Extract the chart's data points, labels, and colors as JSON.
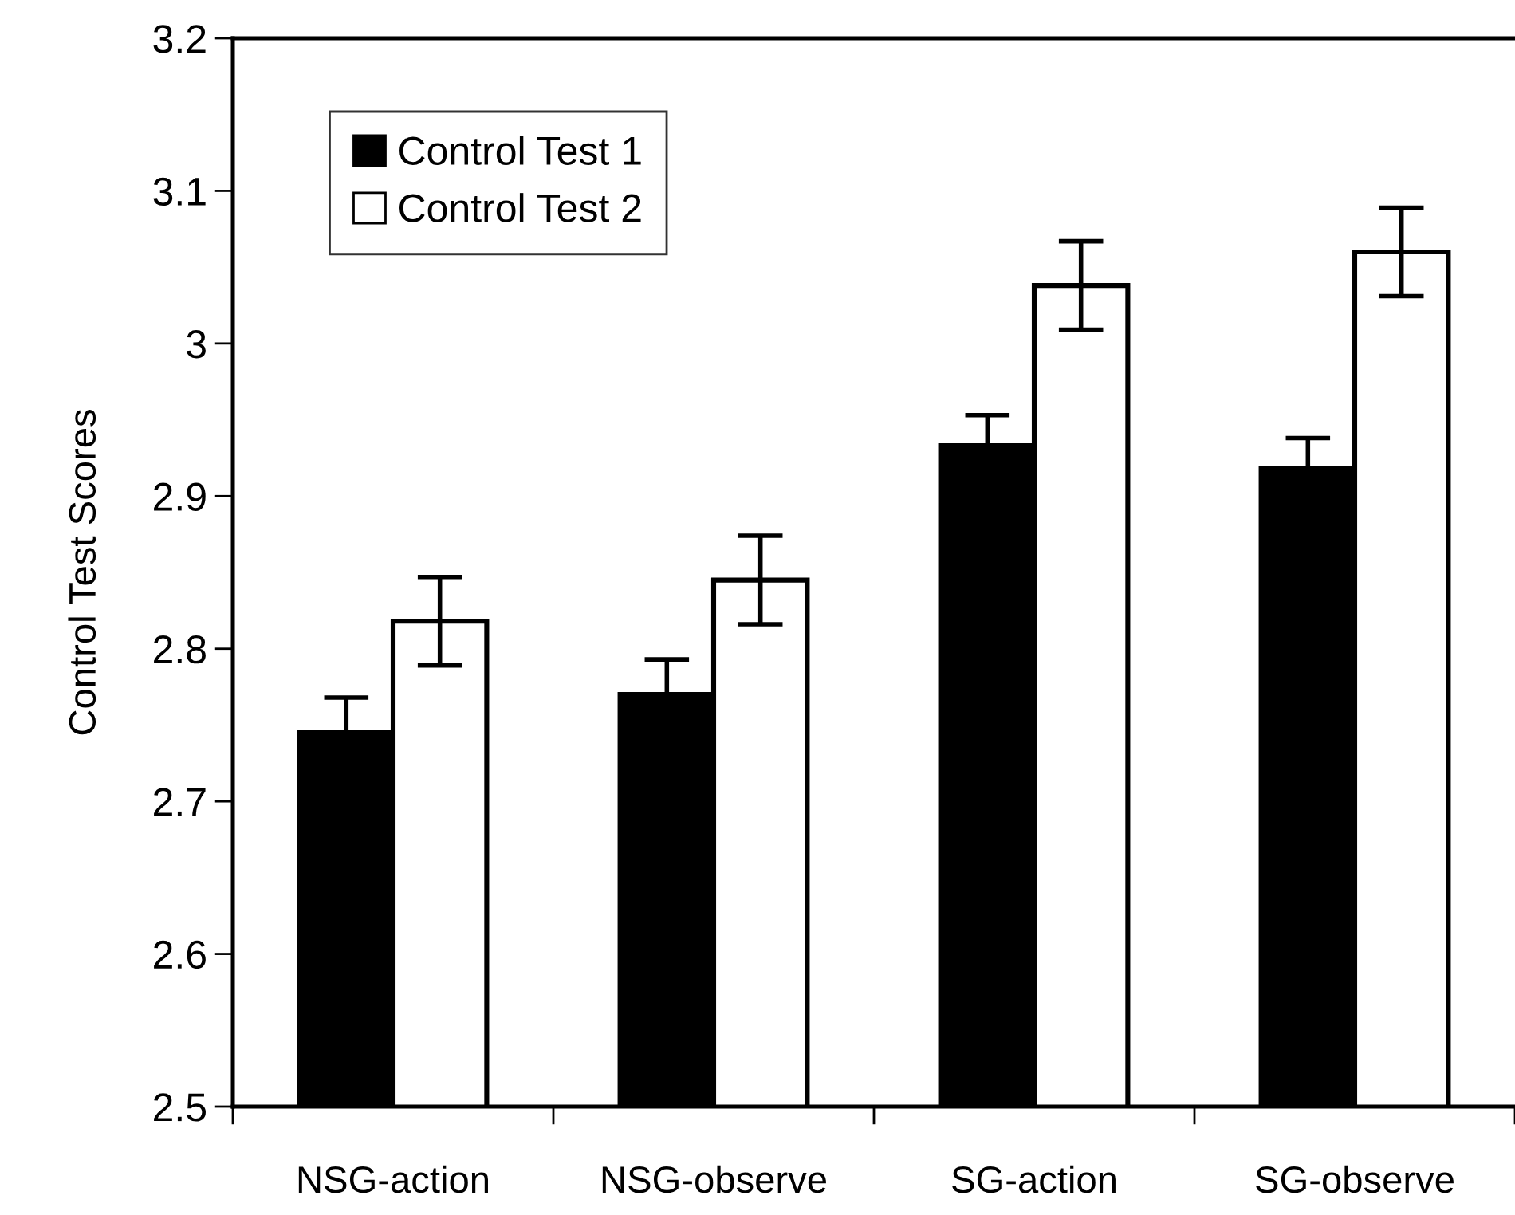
{
  "chart_data": {
    "type": "bar",
    "ylabel": "Control Test Scores",
    "categories": [
      "NSG-action",
      "NSG-observe",
      "SG-action",
      "SG-observe"
    ],
    "series": [
      {
        "name": "Control Test 1",
        "color": "#000000",
        "values": [
          2.745,
          2.77,
          2.933,
          2.918
        ],
        "errors": [
          0.023,
          0.023,
          0.02,
          0.02
        ]
      },
      {
        "name": "Control Test 2",
        "color": "#ffffff",
        "values": [
          2.818,
          2.845,
          3.038,
          3.06
        ],
        "errors": [
          0.029,
          0.029,
          0.029,
          0.029
        ]
      }
    ],
    "ylim": [
      2.5,
      3.2
    ],
    "yticks": [
      2.5,
      2.6,
      2.7,
      2.8,
      2.9,
      3,
      3.1,
      3.2
    ],
    "grid": false,
    "legend": "top left"
  }
}
